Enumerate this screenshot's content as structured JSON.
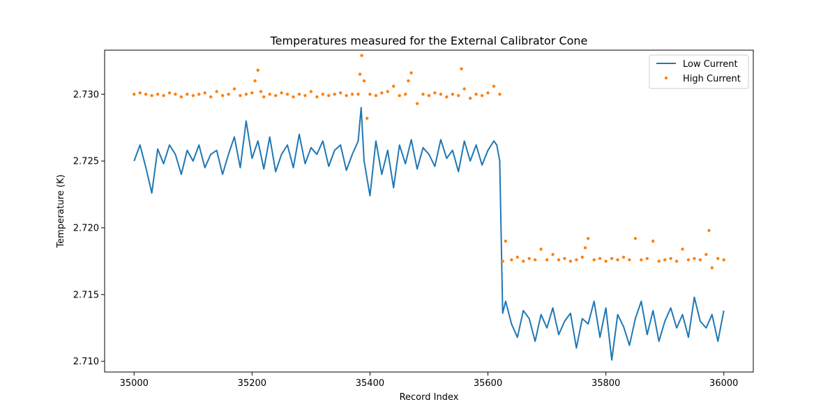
{
  "chart_data": {
    "type": "line",
    "title": "Temperatures measured for the External Calibrator Cone",
    "xlabel": "Record Index",
    "ylabel": "Temperature (K)",
    "xlim": [
      34950,
      36050
    ],
    "ylim": [
      2.7092,
      2.7333
    ],
    "x_ticks": [
      35000,
      35200,
      35400,
      35600,
      35800,
      36000
    ],
    "x_tick_labels": [
      "35000",
      "35200",
      "35400",
      "35600",
      "35800",
      "36000"
    ],
    "y_ticks": [
      2.71,
      2.715,
      2.72,
      2.725,
      2.73
    ],
    "y_tick_labels": [
      "2.710",
      "2.715",
      "2.720",
      "2.725",
      "2.730"
    ],
    "legend_position": "top-right",
    "grid": false,
    "series": [
      {
        "name": "Low Current",
        "style": "line",
        "color": "#1f77b4",
        "x": [
          35000,
          35010,
          35020,
          35030,
          35040,
          35050,
          35060,
          35070,
          35080,
          35090,
          35100,
          35110,
          35120,
          35130,
          35140,
          35150,
          35160,
          35170,
          35180,
          35190,
          35200,
          35210,
          35220,
          35230,
          35240,
          35250,
          35260,
          35270,
          35280,
          35290,
          35300,
          35310,
          35320,
          35330,
          35340,
          35350,
          35360,
          35370,
          35380,
          35385,
          35390,
          35400,
          35410,
          35420,
          35430,
          35440,
          35450,
          35460,
          35470,
          35480,
          35490,
          35500,
          35510,
          35520,
          35530,
          35540,
          35550,
          35560,
          35570,
          35580,
          35590,
          35600,
          35610,
          35615,
          35620,
          35625,
          35630,
          35640,
          35650,
          35660,
          35670,
          35680,
          35690,
          35700,
          35710,
          35720,
          35730,
          35740,
          35750,
          35760,
          35770,
          35780,
          35790,
          35800,
          35810,
          35820,
          35830,
          35840,
          35850,
          35860,
          35870,
          35880,
          35890,
          35900,
          35910,
          35920,
          35930,
          35940,
          35950,
          35960,
          35970,
          35980,
          35990,
          36000
        ],
        "values": [
          2.725,
          2.7262,
          2.7245,
          2.7226,
          2.7259,
          2.7248,
          2.7262,
          2.7255,
          2.724,
          2.7258,
          2.725,
          2.7262,
          2.7245,
          2.7255,
          2.7258,
          2.724,
          2.7255,
          2.7268,
          2.7245,
          2.728,
          2.7252,
          2.7265,
          2.7244,
          2.7268,
          2.7242,
          2.7255,
          2.7262,
          2.7245,
          2.727,
          2.7248,
          2.726,
          2.7255,
          2.7265,
          2.7246,
          2.7258,
          2.7262,
          2.7243,
          2.7255,
          2.7265,
          2.729,
          2.725,
          2.7224,
          2.7265,
          2.724,
          2.7258,
          2.723,
          2.7262,
          2.7248,
          2.7266,
          2.7244,
          2.726,
          2.7255,
          2.7246,
          2.7266,
          2.7252,
          2.7258,
          2.7242,
          2.7265,
          2.725,
          2.7262,
          2.7247,
          2.7258,
          2.7265,
          2.7262,
          2.725,
          2.7136,
          2.7145,
          2.7128,
          2.7118,
          2.7138,
          2.7132,
          2.7115,
          2.7135,
          2.7125,
          2.714,
          2.712,
          2.713,
          2.7136,
          2.711,
          2.7132,
          2.7128,
          2.7145,
          2.7118,
          2.714,
          2.7101,
          2.7135,
          2.7126,
          2.7112,
          2.7132,
          2.7145,
          2.712,
          2.7138,
          2.7115,
          2.713,
          2.714,
          2.7125,
          2.7135,
          2.7118,
          2.7148,
          2.713,
          2.7125,
          2.7135,
          2.7115,
          2.7138
        ]
      },
      {
        "name": "High Current",
        "style": "scatter",
        "color": "#ff7f0e",
        "x": [
          35000,
          35010,
          35020,
          35030,
          35040,
          35050,
          35060,
          35070,
          35080,
          35090,
          35100,
          35110,
          35120,
          35130,
          35140,
          35150,
          35160,
          35170,
          35180,
          35190,
          35200,
          35205,
          35210,
          35215,
          35220,
          35230,
          35240,
          35250,
          35260,
          35270,
          35280,
          35290,
          35300,
          35310,
          35320,
          35330,
          35340,
          35350,
          35360,
          35370,
          35380,
          35383,
          35386,
          35390,
          35395,
          35400,
          35410,
          35420,
          35430,
          35440,
          35450,
          35460,
          35465,
          35470,
          35480,
          35490,
          35500,
          35510,
          35520,
          35530,
          35540,
          35550,
          35555,
          35560,
          35570,
          35580,
          35590,
          35600,
          35610,
          35620,
          35625,
          35630,
          35640,
          35650,
          35660,
          35670,
          35680,
          35690,
          35700,
          35710,
          35720,
          35730,
          35740,
          35750,
          35760,
          35765,
          35770,
          35780,
          35790,
          35800,
          35810,
          35820,
          35830,
          35840,
          35850,
          35860,
          35870,
          35880,
          35890,
          35900,
          35910,
          35920,
          35930,
          35940,
          35950,
          35960,
          35970,
          35975,
          35980,
          35990,
          36000
        ],
        "values": [
          2.73,
          2.7301,
          2.73,
          2.7299,
          2.73,
          2.7299,
          2.7301,
          2.73,
          2.7298,
          2.73,
          2.7299,
          2.73,
          2.7301,
          2.7298,
          2.7302,
          2.7299,
          2.73,
          2.7304,
          2.7299,
          2.73,
          2.7301,
          2.731,
          2.7318,
          2.7302,
          2.7298,
          2.73,
          2.7299,
          2.7301,
          2.73,
          2.7298,
          2.73,
          2.7299,
          2.7302,
          2.7298,
          2.73,
          2.7299,
          2.73,
          2.7301,
          2.7299,
          2.73,
          2.73,
          2.7315,
          2.7329,
          2.731,
          2.7282,
          2.73,
          2.7299,
          2.7301,
          2.7302,
          2.7306,
          2.7299,
          2.73,
          2.731,
          2.7316,
          2.7293,
          2.73,
          2.7299,
          2.7301,
          2.73,
          2.7298,
          2.73,
          2.7299,
          2.7319,
          2.7304,
          2.7297,
          2.73,
          2.7299,
          2.7301,
          2.7306,
          2.73,
          2.7175,
          2.719,
          2.7176,
          2.7178,
          2.7175,
          2.7177,
          2.7176,
          2.7184,
          2.7176,
          2.718,
          2.7176,
          2.7177,
          2.7175,
          2.7176,
          2.7178,
          2.7185,
          2.7192,
          2.7176,
          2.7177,
          2.7175,
          2.7177,
          2.7176,
          2.7178,
          2.7176,
          2.7192,
          2.7176,
          2.7177,
          2.719,
          2.7175,
          2.7176,
          2.7177,
          2.7175,
          2.7184,
          2.7176,
          2.7177,
          2.7176,
          2.718,
          2.7198,
          2.717,
          2.7177,
          2.7176
        ]
      }
    ]
  }
}
